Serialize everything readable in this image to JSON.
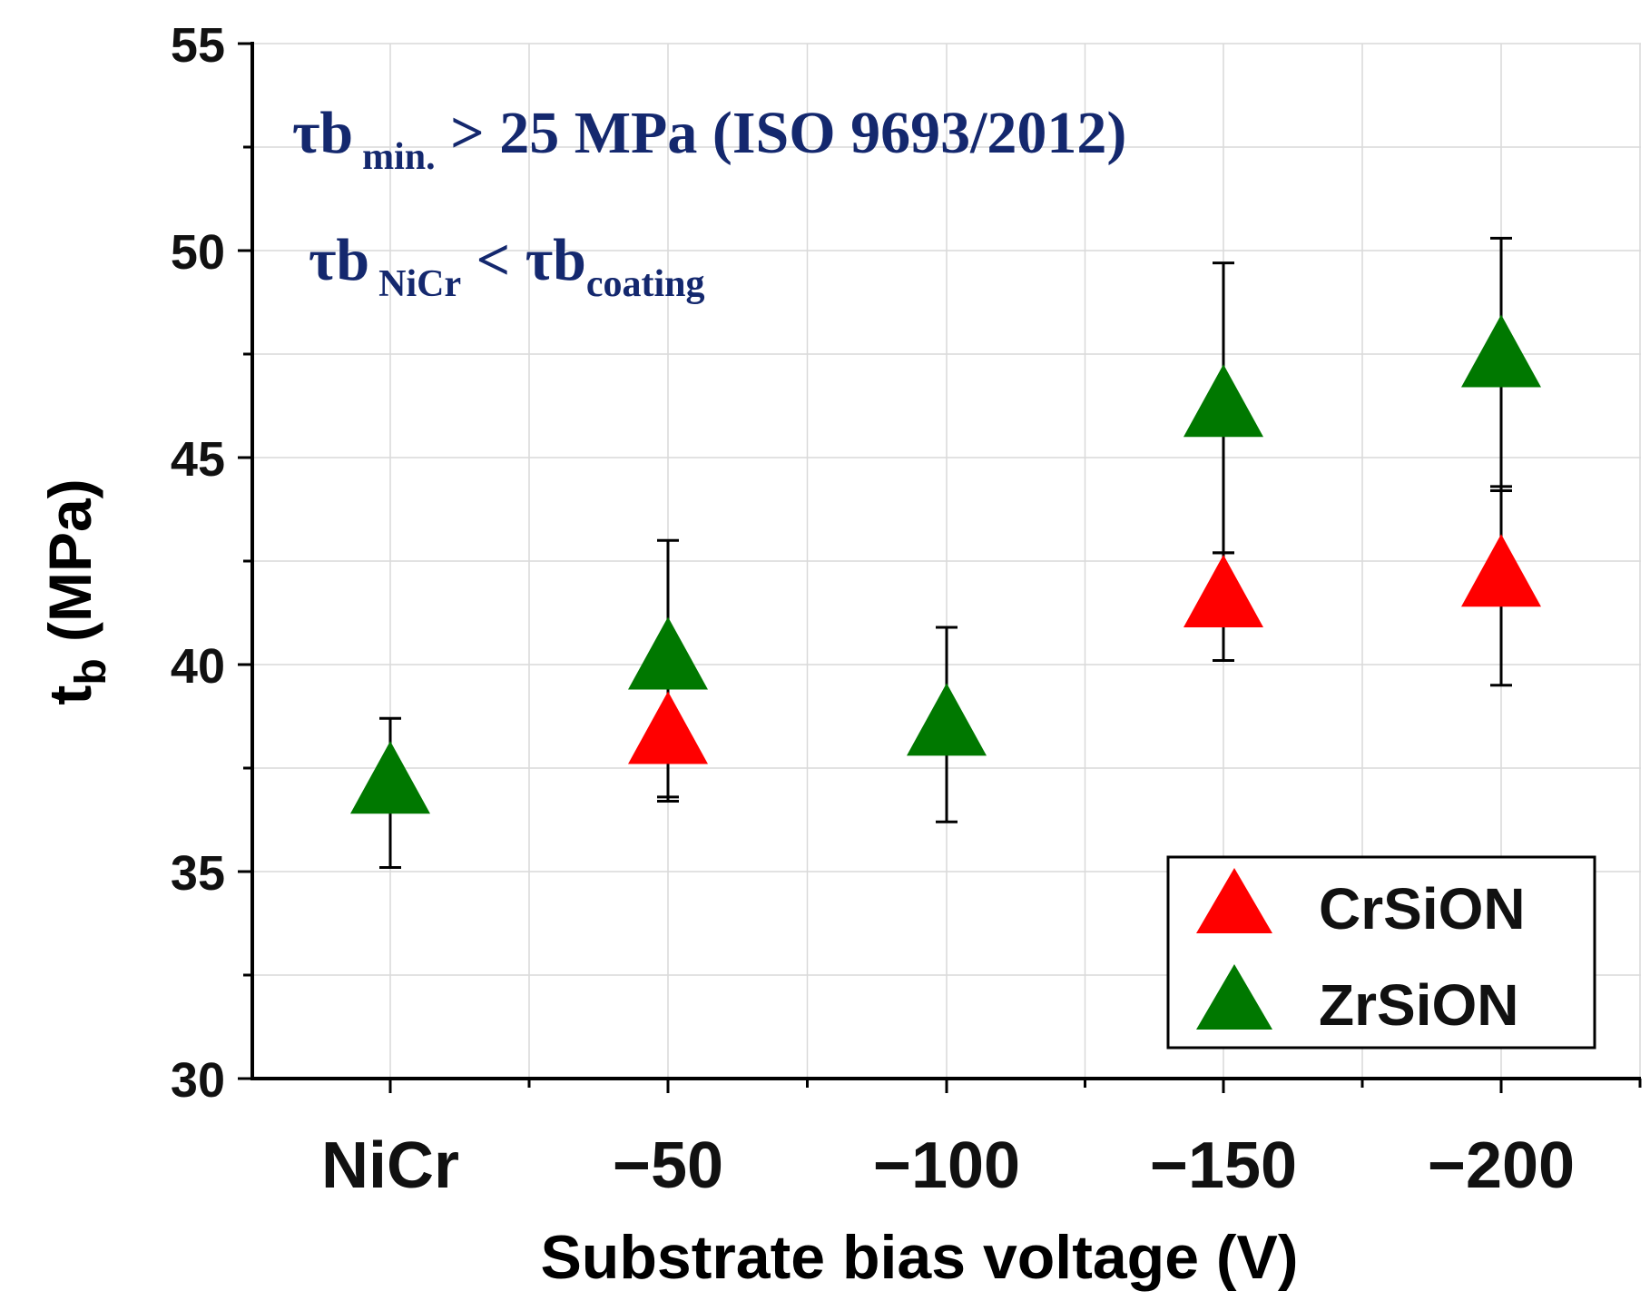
{
  "chart_data": {
    "type": "scatter",
    "categories": [
      "NiCr",
      "−50",
      "−100",
      "−150",
      "−200"
    ],
    "xlabel": "Substrate bias voltage (V)",
    "ylabel_main": "t",
    "ylabel_sub": "b",
    "ylabel_rest": " (MPa)",
    "ylim": [
      30,
      55
    ],
    "yticks": [
      "30",
      "35",
      "40",
      "45",
      "50",
      "55"
    ],
    "grid": true,
    "legend_position": "bottom-right",
    "series": [
      {
        "name": "CrSiON",
        "color": "#ff0000",
        "points": [
          {
            "x": "−50",
            "y": 38.3,
            "err_low": 36.7,
            "err_high": 39.5
          },
          {
            "x": "−150",
            "y": 41.6,
            "err_low": 40.1,
            "err_high": 42.7
          },
          {
            "x": "−200",
            "y": 42.1,
            "err_low": 39.5,
            "err_high": 44.3
          }
        ]
      },
      {
        "name": "ZrSiON",
        "color": "#007800",
        "points": [
          {
            "x": "NiCr",
            "y": 37.1,
            "err_low": 35.1,
            "err_high": 38.7
          },
          {
            "x": "−50",
            "y": 40.1,
            "err_low": 36.8,
            "err_high": 43.0
          },
          {
            "x": "−100",
            "y": 38.5,
            "err_low": 36.2,
            "err_high": 40.9
          },
          {
            "x": "−150",
            "y": 46.2,
            "err_low": 42.7,
            "err_high": 49.7
          },
          {
            "x": "−200",
            "y": 47.4,
            "err_low": 44.2,
            "err_high": 50.3
          }
        ]
      }
    ],
    "annotations": {
      "line1_main": "τb",
      "line1_sub": "min.",
      "line1_rest": " > 25 MPa (ISO 9693/2012)",
      "line2_main": "τb",
      "line2_sub": "NiCr",
      "line2_mid": " < τb",
      "line2_sub2": "coating",
      "color": "#14286e"
    }
  }
}
